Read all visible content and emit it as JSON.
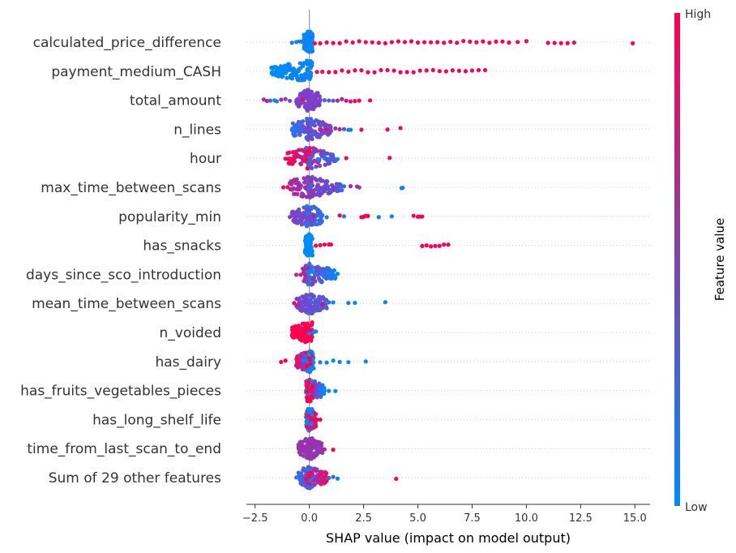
{
  "chart_data": {
    "type": "scatter",
    "xlabel": "SHAP value (impact on model output)",
    "xlim": [
      -2.9,
      15.7
    ],
    "xticks": [
      -2.5,
      0.0,
      2.5,
      5.0,
      7.5,
      10.0,
      12.5,
      15.0
    ],
    "xtick_labels": [
      "−2.5",
      "0.0",
      "2.5",
      "5.0",
      "7.5",
      "10.0",
      "12.5",
      "15.0"
    ],
    "colorbar": {
      "title": "Feature value",
      "high_label": "High",
      "low_label": "Low",
      "low_color": "#008bfb",
      "high_color": "#ff0051"
    },
    "features": [
      {
        "name": "calculated_price_difference",
        "core": [
          [
            -0.25,
            0.0
          ],
          [
            0.15,
            0.1
          ]
        ],
        "points": [
          [
            -0.8,
            0.1
          ],
          [
            -0.6,
            0.05
          ],
          [
            -0.45,
            0.05
          ],
          [
            -0.35,
            0.1
          ],
          [
            0.25,
            1
          ],
          [
            0.5,
            1
          ],
          [
            0.8,
            1
          ],
          [
            1.1,
            1
          ],
          [
            1.4,
            1
          ],
          [
            1.7,
            1
          ],
          [
            2.0,
            1
          ],
          [
            2.3,
            1
          ],
          [
            2.6,
            1
          ],
          [
            2.9,
            1
          ],
          [
            3.2,
            1
          ],
          [
            3.5,
            1
          ],
          [
            3.8,
            1
          ],
          [
            4.1,
            1
          ],
          [
            4.4,
            1
          ],
          [
            4.7,
            1
          ],
          [
            5.0,
            1
          ],
          [
            5.3,
            1
          ],
          [
            5.6,
            1
          ],
          [
            5.9,
            1
          ],
          [
            6.2,
            1
          ],
          [
            6.5,
            1
          ],
          [
            6.8,
            1
          ],
          [
            7.1,
            1
          ],
          [
            7.4,
            1
          ],
          [
            7.7,
            1
          ],
          [
            8.0,
            1
          ],
          [
            8.3,
            1
          ],
          [
            8.6,
            1
          ],
          [
            8.9,
            1
          ],
          [
            9.2,
            1
          ],
          [
            9.6,
            1
          ],
          [
            10.0,
            1
          ],
          [
            11.0,
            1
          ],
          [
            11.3,
            1
          ],
          [
            11.6,
            1
          ],
          [
            11.9,
            1
          ],
          [
            12.2,
            1
          ],
          [
            14.9,
            1
          ]
        ]
      },
      {
        "name": "payment_medium_CASH",
        "core": [
          [
            -1.75,
            0.0
          ],
          [
            -0.2,
            0.05
          ]
        ],
        "points": [
          [
            0.35,
            0.95
          ],
          [
            0.6,
            1
          ],
          [
            0.9,
            1
          ],
          [
            1.2,
            1
          ],
          [
            1.5,
            1
          ],
          [
            1.8,
            1
          ],
          [
            2.1,
            1
          ],
          [
            2.4,
            1
          ],
          [
            2.7,
            1
          ],
          [
            3.0,
            1
          ],
          [
            3.3,
            1
          ],
          [
            3.6,
            1
          ],
          [
            3.9,
            1
          ],
          [
            4.2,
            1
          ],
          [
            4.5,
            1
          ],
          [
            4.8,
            1
          ],
          [
            5.1,
            1
          ],
          [
            5.4,
            1
          ],
          [
            5.7,
            1
          ],
          [
            6.0,
            1
          ],
          [
            6.3,
            1
          ],
          [
            6.6,
            1
          ],
          [
            6.9,
            1
          ],
          [
            7.2,
            1
          ],
          [
            7.5,
            1
          ],
          [
            7.8,
            1
          ],
          [
            8.1,
            1
          ],
          [
            -0.1,
            0.05
          ]
        ]
      },
      {
        "name": "total_amount",
        "core": [
          [
            -0.6,
            0.5
          ],
          [
            0.5,
            0.5
          ]
        ],
        "points": [
          [
            -2.1,
            0.6
          ],
          [
            -1.95,
            0.8
          ],
          [
            -1.8,
            0.3
          ],
          [
            -1.6,
            0.1
          ],
          [
            -1.5,
            0.05
          ],
          [
            -1.3,
            0.7
          ],
          [
            -1.1,
            0.6
          ],
          [
            -0.9,
            0.4
          ],
          [
            0.7,
            0.2
          ],
          [
            0.9,
            0.3
          ],
          [
            1.1,
            0.4
          ],
          [
            1.3,
            0.6
          ],
          [
            1.5,
            0.7
          ],
          [
            1.7,
            0.8
          ],
          [
            1.9,
            0.9
          ],
          [
            2.1,
            1
          ],
          [
            2.3,
            1
          ],
          [
            2.8,
            1
          ],
          [
            -0.3,
            0.9
          ],
          [
            0.2,
            0.5
          ]
        ]
      },
      {
        "name": "n_lines",
        "core": [
          [
            -0.8,
            0.2
          ],
          [
            1.0,
            0.5
          ]
        ],
        "points": [
          [
            1.2,
            0.6
          ],
          [
            1.4,
            0.8
          ],
          [
            1.6,
            0.3
          ],
          [
            1.8,
            0.2
          ],
          [
            1.9,
            0.05
          ],
          [
            2.4,
            1
          ],
          [
            3.6,
            1
          ],
          [
            4.2,
            1
          ],
          [
            -0.7,
            0.1
          ],
          [
            0.5,
            0.8
          ],
          [
            0.8,
            0.9
          ]
        ]
      },
      {
        "name": "hour",
        "core": [
          [
            -1.0,
            1.0
          ],
          [
            1.2,
            0.3
          ]
        ],
        "points": [
          [
            -1.1,
            1
          ],
          [
            -0.9,
            0.9
          ],
          [
            -0.7,
            0.95
          ],
          [
            0.4,
            0.1
          ],
          [
            0.7,
            0.05
          ],
          [
            0.9,
            0.2
          ],
          [
            1.3,
            0.1
          ],
          [
            1.7,
            0.9
          ],
          [
            3.7,
            1
          ]
        ]
      },
      {
        "name": "max_time_between_scans",
        "core": [
          [
            -0.9,
            0.7
          ],
          [
            1.5,
            0.3
          ]
        ],
        "points": [
          [
            -1.2,
            1
          ],
          [
            -1.0,
            0.9
          ],
          [
            -0.5,
            0.6
          ],
          [
            0.5,
            0.4
          ],
          [
            0.8,
            0.5
          ],
          [
            1.1,
            0.6
          ],
          [
            1.6,
            0.2
          ],
          [
            1.9,
            0.7
          ],
          [
            2.2,
            0.8
          ],
          [
            2.3,
            0.5
          ],
          [
            4.3,
            0.05
          ],
          [
            4.25,
            0.1
          ]
        ]
      },
      {
        "name": "popularity_min",
        "core": [
          [
            -0.8,
            0.5
          ],
          [
            0.6,
            0.2
          ]
        ],
        "points": [
          [
            -0.9,
            0.55
          ],
          [
            -0.3,
            0.6
          ],
          [
            0.3,
            0.05
          ],
          [
            0.8,
            0.1
          ],
          [
            1.4,
            1
          ],
          [
            1.6,
            0.1
          ],
          [
            2.4,
            1
          ],
          [
            2.5,
            1
          ],
          [
            2.6,
            1
          ],
          [
            2.7,
            1
          ],
          [
            3.2,
            0.1
          ],
          [
            3.8,
            0.05
          ],
          [
            4.8,
            1
          ],
          [
            5.0,
            1
          ],
          [
            5.1,
            1
          ],
          [
            5.2,
            1
          ],
          [
            0.2,
            0.8
          ]
        ]
      },
      {
        "name": "has_snacks",
        "core": [
          [
            -0.2,
            0.0
          ],
          [
            0.1,
            0.0
          ]
        ],
        "points": [
          [
            0.3,
            1
          ],
          [
            0.5,
            1
          ],
          [
            0.7,
            1
          ],
          [
            0.9,
            1
          ],
          [
            1.0,
            1
          ],
          [
            5.2,
            1
          ],
          [
            5.4,
            1
          ],
          [
            5.6,
            1
          ],
          [
            5.8,
            1
          ],
          [
            6.0,
            1
          ],
          [
            6.2,
            1
          ],
          [
            6.4,
            1
          ]
        ]
      },
      {
        "name": "days_since_sco_introduction",
        "core": [
          [
            -0.3,
            0.7
          ],
          [
            1.2,
            0.05
          ]
        ],
        "points": [
          [
            -0.6,
            0.7
          ],
          [
            -0.4,
            0.8
          ],
          [
            -0.2,
            0.75
          ],
          [
            0.3,
            0.1
          ],
          [
            0.6,
            0.05
          ],
          [
            0.9,
            0.1
          ],
          [
            1.3,
            0.0
          ]
        ]
      },
      {
        "name": "mean_time_between_scans",
        "core": [
          [
            -0.6,
            0.5
          ],
          [
            0.8,
            0.3
          ]
        ],
        "points": [
          [
            -0.7,
            0.9
          ],
          [
            -0.5,
            0.7
          ],
          [
            0.4,
            0.3
          ],
          [
            0.6,
            0.9
          ],
          [
            0.9,
            0.2
          ],
          [
            1.1,
            0.05
          ],
          [
            1.8,
            0.1
          ],
          [
            2.1,
            0.05
          ],
          [
            3.5,
            0.05
          ]
        ]
      },
      {
        "name": "n_voided",
        "core": [
          [
            -0.8,
            1.0
          ],
          [
            -0.1,
            1.0
          ]
        ],
        "points": [
          [
            -0.7,
            1
          ],
          [
            -0.5,
            1
          ],
          [
            -0.3,
            1
          ],
          [
            0.0,
            0.1
          ],
          [
            0.2,
            0.05
          ],
          [
            0.3,
            0.05
          ]
        ]
      },
      {
        "name": "has_dairy",
        "core": [
          [
            -0.6,
            1.0
          ],
          [
            0.2,
            0.0
          ]
        ],
        "points": [
          [
            -1.3,
            1
          ],
          [
            -1.1,
            1
          ],
          [
            0.5,
            0.1
          ],
          [
            0.8,
            0.05
          ],
          [
            1.1,
            0.0
          ],
          [
            1.4,
            0.05
          ],
          [
            1.8,
            0.05
          ],
          [
            2.6,
            0.0
          ],
          [
            -0.3,
            0.2
          ]
        ]
      },
      {
        "name": "has_fruits_vegetables_pieces",
        "core": [
          [
            -0.15,
            1.0
          ],
          [
            0.7,
            0.05
          ]
        ],
        "points": [
          [
            -0.1,
            1
          ],
          [
            0.1,
            0.9
          ],
          [
            0.5,
            0.1
          ],
          [
            0.9,
            0.05
          ],
          [
            1.2,
            0.0
          ]
        ]
      },
      {
        "name": "has_long_shelf_life",
        "core": [
          [
            -0.15,
            0.0
          ],
          [
            0.3,
            0.9
          ]
        ],
        "points": [
          [
            0.2,
            0.9
          ],
          [
            0.35,
            1
          ],
          [
            0.5,
            1
          ]
        ]
      },
      {
        "name": "time_from_last_scan_to_end",
        "core": [
          [
            -0.5,
            0.6
          ],
          [
            0.6,
            0.6
          ]
        ],
        "points": [
          [
            -0.5,
            0.6
          ],
          [
            0.4,
            0.5
          ],
          [
            0.7,
            0.7
          ],
          [
            1.1,
            1
          ]
        ]
      },
      {
        "name": "Sum of 29 other features",
        "core": [
          [
            -0.5,
            0.2
          ],
          [
            0.8,
            0.9
          ]
        ],
        "points": [
          [
            -0.6,
            0.1
          ],
          [
            -0.4,
            0.2
          ],
          [
            0.5,
            0.8
          ],
          [
            0.9,
            0.3
          ],
          [
            1.1,
            0.2
          ],
          [
            1.3,
            0.05
          ],
          [
            4.0,
            1
          ],
          [
            0.0,
            1
          ]
        ]
      }
    ]
  }
}
